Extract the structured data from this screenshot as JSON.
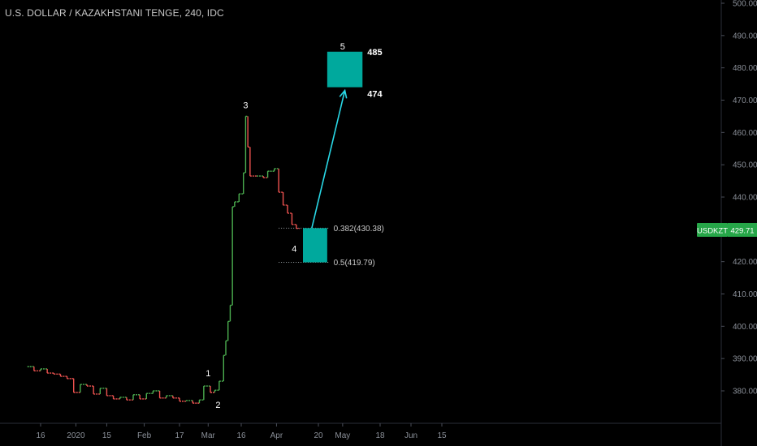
{
  "chart_title": "U.S. DOLLAR / KAZAKHSTANI TENGE, 240, IDC",
  "chart_data": {
    "type": "line",
    "title": "U.S. DOLLAR / KAZAKHSTANI TENGE, 240, IDC",
    "ylim": [
      370,
      500
    ],
    "y_ticks": [
      "380.00",
      "390.00",
      "400.00",
      "410.00",
      "420.00",
      "430.00",
      "440.00",
      "450.00",
      "460.00",
      "470.00",
      "480.00",
      "490.00",
      "500.00"
    ],
    "x_ticks": [
      "16",
      "2020",
      "15",
      "Feb",
      "17",
      "Mar",
      "16",
      "Apr",
      "20",
      "May",
      "18",
      "Jun",
      "15"
    ],
    "series": [
      {
        "x": [
          "2019-12-10",
          "2019-12-13",
          "2019-12-16",
          "2019-12-19",
          "2019-12-22",
          "2019-12-25",
          "2019-12-28",
          "2019-12-31",
          "2020-01-03",
          "2020-01-06",
          "2020-01-09",
          "2020-01-12",
          "2020-01-15",
          "2020-01-18",
          "2020-01-21",
          "2020-01-24",
          "2020-01-27",
          "2020-01-30",
          "2020-02-02",
          "2020-02-05",
          "2020-02-08",
          "2020-02-11",
          "2020-02-14",
          "2020-02-17",
          "2020-02-20",
          "2020-02-23",
          "2020-02-26",
          "2020-02-28",
          "2020-03-02",
          "2020-03-04",
          "2020-03-06",
          "2020-03-08",
          "2020-03-09",
          "2020-03-10",
          "2020-03-11",
          "2020-03-12",
          "2020-03-13",
          "2020-03-15",
          "2020-03-17",
          "2020-03-18",
          "2020-03-19",
          "2020-03-20",
          "2020-03-23",
          "2020-03-26",
          "2020-03-28",
          "2020-03-31",
          "2020-04-02",
          "2020-04-04",
          "2020-04-06",
          "2020-04-08",
          "2020-04-10"
        ],
        "values": [
          387.5,
          386.2,
          386.8,
          385.5,
          385.2,
          384.5,
          383.8,
          379.5,
          382.0,
          381.5,
          379.0,
          380.8,
          378.5,
          377.5,
          378.0,
          377.2,
          378.8,
          377.5,
          379.2,
          380.0,
          377.8,
          378.5,
          377.8,
          376.8,
          377.0,
          376.2,
          377.2,
          381.5,
          379.5,
          380.2,
          383.0,
          391.0,
          395.5,
          401.5,
          406.5,
          437.0,
          438.5,
          441.0,
          447.5,
          465.0,
          455.5,
          446.5,
          446.5,
          446.0,
          448.0,
          448.8,
          441.5,
          437.5,
          435.0,
          431.5,
          430.3
        ]
      }
    ],
    "annotations": {
      "wave_labels": [
        {
          "text": "1",
          "x": "2020-03-01",
          "y": 382.5
        },
        {
          "text": "2",
          "x": "2020-03-04",
          "y": 377.8
        },
        {
          "text": "3",
          "x": "2020-03-18",
          "y": 465.0
        },
        {
          "text": "4",
          "x": "2020-04-12",
          "y": 424.0
        },
        {
          "text": "5",
          "x": "2020-05-01",
          "y": 485.0
        }
      ],
      "target_zone": {
        "top": 485,
        "bottom": 474,
        "label_top": "485",
        "label_bottom": "474",
        "x_start": "2020-04-24",
        "x_end": "2020-05-10"
      },
      "retrace_zone": {
        "top": 430.38,
        "bottom": 419.79,
        "x_start": "2020-04-13",
        "x_end": "2020-04-24"
      },
      "fib_levels": [
        {
          "label": "0.382(430.38)",
          "value": 430.38
        },
        {
          "label": "0.5(419.79)",
          "value": 419.79
        }
      ],
      "arrow": {
        "from": {
          "x": "2020-04-17",
          "y": 430.38
        },
        "to": {
          "x": "2020-05-02",
          "y": 473.0
        }
      }
    },
    "last_price": {
      "symbol": "USDKZT",
      "value": "429.71"
    }
  },
  "colors": {
    "background": "#000000",
    "price_up": "#4caf50",
    "price_down": "#ef5350",
    "zone_fill": "#00a99d",
    "arrow": "#29d8e6",
    "badge": "#26a648",
    "axis_text": "#8a8f98"
  }
}
